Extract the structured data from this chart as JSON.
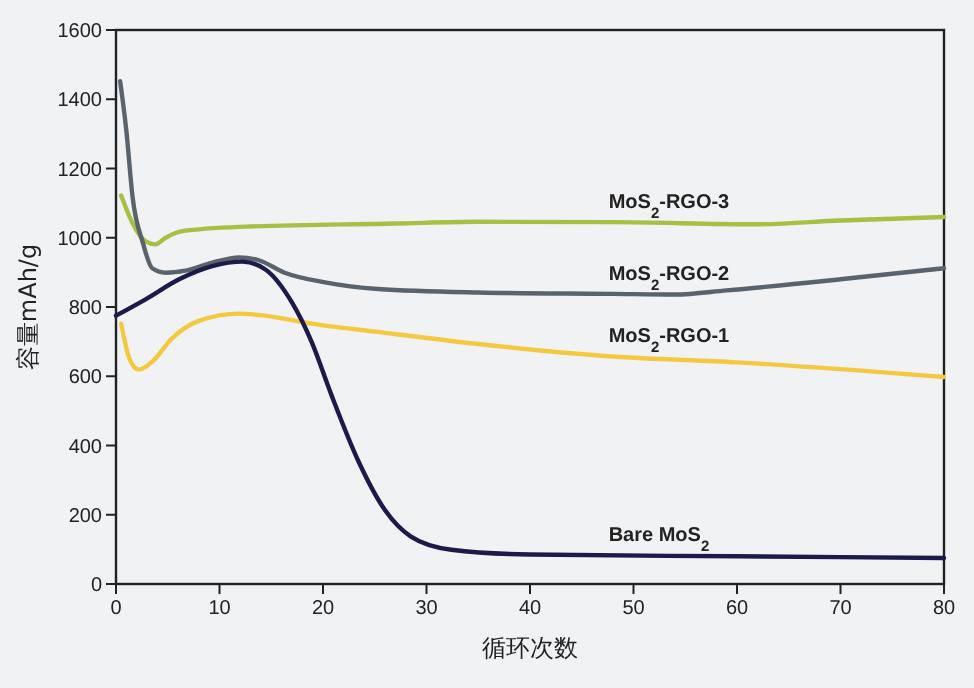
{
  "chart_data": {
    "type": "line",
    "xlabel": "循环次数",
    "ylabel": "容量mAh/g",
    "xlim": [
      0,
      80
    ],
    "xticks": [
      0,
      10,
      20,
      30,
      40,
      50,
      60,
      70,
      80
    ],
    "ylim": [
      0,
      1600
    ],
    "yticks": [
      0,
      200,
      400,
      600,
      800,
      1000,
      1200,
      1400,
      1600
    ],
    "grid": false,
    "marker": "none",
    "line_style": "solid",
    "series": [
      {
        "name": "MoS$_{2}$-RGO-3",
        "color": "#a5c043",
        "x": [
          0.5,
          1.6,
          2.9,
          3.8,
          4.8,
          6.4,
          12.5,
          27,
          35,
          48,
          62,
          70,
          80
        ],
        "values": [
          1122,
          1042,
          989,
          981,
          1000,
          1019,
          1032,
          1041,
          1046,
          1045,
          1039,
          1050,
          1060
        ]
      },
      {
        "name": "MoS$_{2}$-RGO-2",
        "color": "#59636b",
        "x": [
          0.4,
          1,
          1.6,
          2.6,
          3.5,
          4.8,
          6.7,
          9.3,
          11.9,
          13.8,
          16.3,
          20.2,
          25.3,
          35,
          48,
          54,
          59,
          70,
          80
        ],
        "values": [
          1452,
          1309,
          1118,
          985,
          912,
          899,
          905,
          928,
          943,
          935,
          899,
          871,
          852,
          842,
          838,
          836,
          848,
          880,
          912
        ]
      },
      {
        "name": "MoS$_{2}$-RGO-1",
        "color": "#f5c842",
        "x": [
          0.5,
          1.3,
          2.2,
          3.5,
          5.4,
          8,
          11.9,
          14.4,
          18.9,
          25.3,
          35,
          48,
          60,
          80
        ],
        "values": [
          752,
          651,
          619,
          642,
          709,
          760,
          781,
          775,
          752,
          728,
          693,
          657,
          640,
          598
        ]
      },
      {
        "name": "Bare MoS$_{2}$",
        "color": "#1c1a4a",
        "x": [
          0,
          2.9,
          6.1,
          9.3,
          12.2,
          14.4,
          17,
          18.9,
          20.8,
          23.4,
          26,
          28.5,
          32.4,
          40,
          60,
          80
        ],
        "values": [
          775,
          823,
          880,
          918,
          931,
          909,
          813,
          699,
          547,
          356,
          213,
          137,
          99,
          85,
          80,
          75
        ]
      }
    ]
  }
}
